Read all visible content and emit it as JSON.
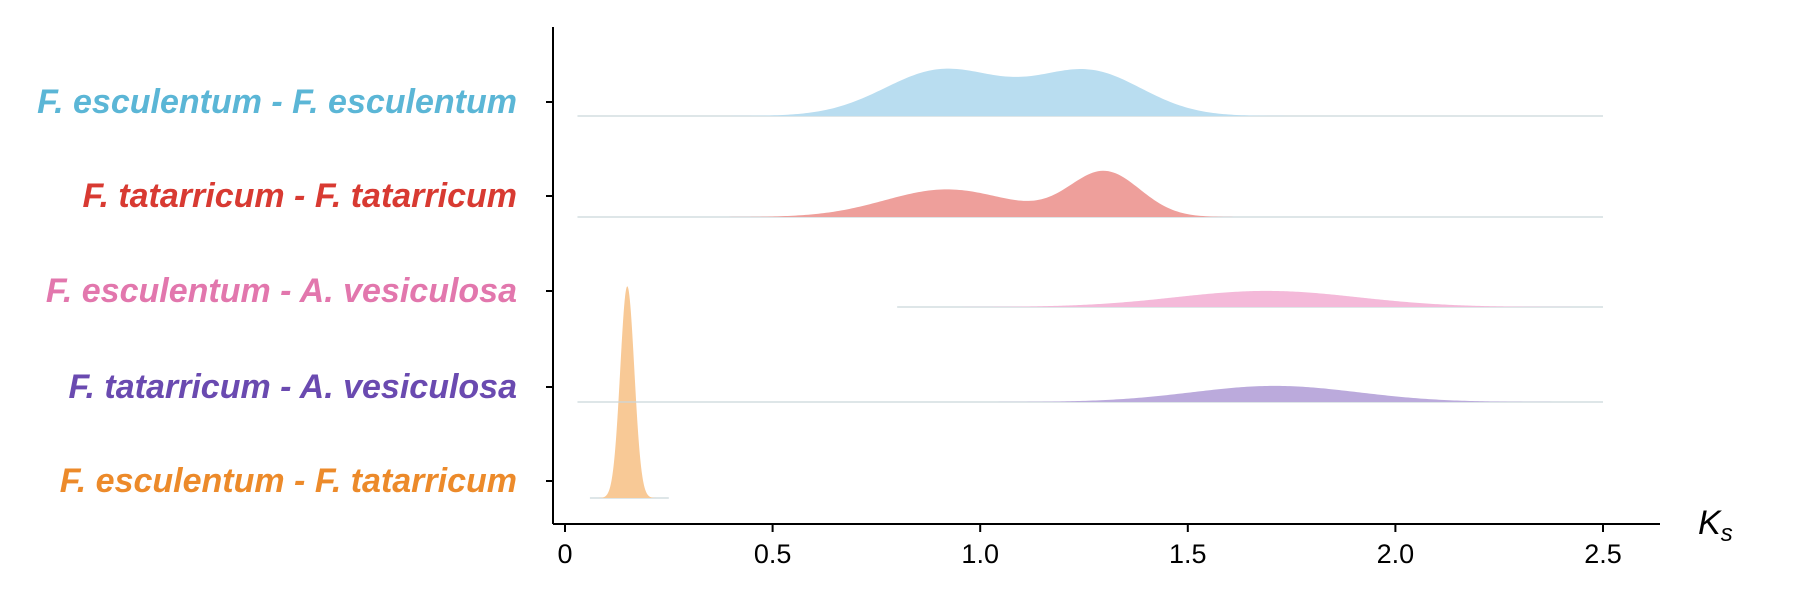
{
  "chart_data": {
    "type": "ridgeline",
    "title": "",
    "xlabel": "K",
    "xlabel_subscript": "s",
    "ylabel": "",
    "xlim": [
      0,
      2.5
    ],
    "x_ticks": [
      "0",
      "0.5",
      "1.0",
      "1.5",
      "2.0",
      "2.5"
    ],
    "x_tick_values": [
      0,
      0.5,
      1.0,
      1.5,
      2.0,
      2.5
    ],
    "grid": false,
    "series": [
      {
        "name": "F. esculentum - F. esculentum",
        "color": "#5bb6d6",
        "fill": "#b9ddf0",
        "x_range": [
          0.03,
          2.5
        ],
        "components": [
          {
            "mean": 0.91,
            "sd": 0.14,
            "weight": 1.0
          },
          {
            "mean": 1.26,
            "sd": 0.13,
            "weight": 0.97
          }
        ]
      },
      {
        "name": "F. tatarricum - F. tatarricum",
        "color": "#d83a32",
        "fill": "#ee9f9b",
        "x_range": [
          0.03,
          2.5
        ],
        "components": [
          {
            "mean": 0.92,
            "sd": 0.15,
            "weight": 0.6
          },
          {
            "mean": 1.3,
            "sd": 0.085,
            "weight": 0.98
          }
        ]
      },
      {
        "name": "F. esculentum - A. vesiculosa",
        "color": "#e277ad",
        "fill": "#f4b9d9",
        "x_range": [
          0.8,
          2.5
        ],
        "components": [
          {
            "mean": 1.69,
            "sd": 0.22,
            "weight": 0.35
          }
        ]
      },
      {
        "name": "F. tatarricum - A. vesiculosa",
        "color": "#6a4ab0",
        "fill": "#bbaadc",
        "x_range": [
          0.03,
          2.5
        ],
        "components": [
          {
            "mean": 1.71,
            "sd": 0.2,
            "weight": 0.35
          }
        ]
      },
      {
        "name": "F. esculentum - F. tatarricum",
        "color": "#ec8a2a",
        "fill": "#f8c996",
        "x_range": [
          0.06,
          0.25
        ],
        "components": [
          {
            "mean": 0.15,
            "sd": 0.017,
            "weight": 4.6
          }
        ]
      }
    ]
  }
}
